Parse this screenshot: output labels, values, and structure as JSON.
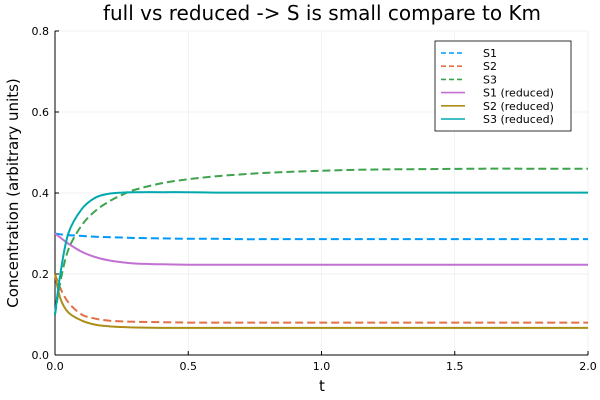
{
  "chart_data": {
    "type": "line",
    "title": "full vs reduced -> S is small compare to Km",
    "xlabel": "t",
    "ylabel": "Concentration (arbitrary units)",
    "xlim": [
      0,
      2
    ],
    "ylim": [
      0,
      0.8
    ],
    "xticks": [
      0,
      0.5,
      1,
      1.5,
      2
    ],
    "xtick_labels": [
      "0.0",
      "0.5",
      "1.0",
      "1.5",
      "2.0"
    ],
    "yticks": [
      0,
      0.2,
      0.4,
      0.6,
      0.8
    ],
    "ytick_labels": [
      "0.0",
      "0.2",
      "0.4",
      "0.6",
      "0.8"
    ],
    "grid": true,
    "legend_position": "top-right",
    "x": [
      0,
      0.02,
      0.05,
      0.1,
      0.15,
      0.2,
      0.25,
      0.3,
      0.4,
      0.5,
      0.6,
      0.7,
      0.8,
      1.0,
      1.2,
      1.4,
      1.6,
      1.8,
      2.0
    ],
    "series": [
      {
        "name": "S1",
        "color": "#009af9",
        "dash": "dashed",
        "values": [
          0.3,
          0.298,
          0.296,
          0.294,
          0.292,
          0.291,
          0.29,
          0.289,
          0.288,
          0.287,
          0.287,
          0.286,
          0.286,
          0.286,
          0.286,
          0.286,
          0.286,
          0.286,
          0.286
        ]
      },
      {
        "name": "S2",
        "color": "#e26f46",
        "dash": "dashed",
        "values": [
          0.2,
          0.165,
          0.13,
          0.1,
          0.09,
          0.085,
          0.083,
          0.082,
          0.081,
          0.08,
          0.08,
          0.08,
          0.08,
          0.08,
          0.08,
          0.08,
          0.08,
          0.08,
          0.08
        ]
      },
      {
        "name": "S3",
        "color": "#3da44d",
        "dash": "dashed",
        "values": [
          0.1,
          0.18,
          0.26,
          0.32,
          0.355,
          0.378,
          0.395,
          0.408,
          0.424,
          0.434,
          0.441,
          0.446,
          0.45,
          0.455,
          0.458,
          0.459,
          0.46,
          0.46,
          0.46
        ]
      },
      {
        "name": "S1 (reduced)",
        "color": "#c271d2",
        "dash": "solid",
        "values": [
          0.3,
          0.29,
          0.275,
          0.255,
          0.242,
          0.234,
          0.229,
          0.226,
          0.224,
          0.223,
          0.223,
          0.223,
          0.223,
          0.223,
          0.223,
          0.223,
          0.223,
          0.223,
          0.223
        ]
      },
      {
        "name": "S2 (reduced)",
        "color": "#ac8d18",
        "dash": "solid",
        "values": [
          0.2,
          0.14,
          0.105,
          0.085,
          0.075,
          0.071,
          0.069,
          0.068,
          0.067,
          0.067,
          0.067,
          0.067,
          0.067,
          0.067,
          0.067,
          0.067,
          0.067,
          0.067,
          0.067
        ]
      },
      {
        "name": "S3 (reduced)",
        "color": "#00a9ad",
        "dash": "solid",
        "values": [
          0.1,
          0.2,
          0.3,
          0.36,
          0.388,
          0.398,
          0.401,
          0.402,
          0.402,
          0.402,
          0.401,
          0.401,
          0.401,
          0.401,
          0.401,
          0.401,
          0.401,
          0.401,
          0.401
        ]
      }
    ]
  }
}
